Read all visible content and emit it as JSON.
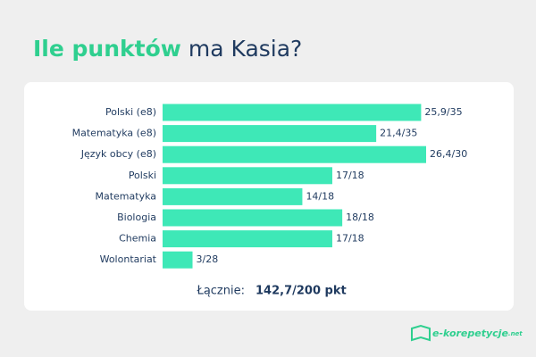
{
  "chart_data": {
    "type": "bar",
    "orientation": "horizontal",
    "title": [
      "Ile punktów",
      "ma Kasia?"
    ],
    "categories": [
      "Polski (e8)",
      "Matematyka (e8)",
      "Język obcy (e8)",
      "Polski",
      "Matematyka",
      "Biologia",
      "Chemia",
      "Wolontariat"
    ],
    "values": [
      25.9,
      21.4,
      26.4,
      17,
      14,
      18,
      17,
      3
    ],
    "value_labels": [
      "25,9/35",
      "21,4/35",
      "26,4/30",
      "17/18",
      "14/18",
      "18/18",
      "17/18",
      "3/28"
    ],
    "color": "#3ee8b7",
    "total_label": "Łącznie:",
    "total": "142,7/200 pkt",
    "logo": "e-korepetycje",
    "logo_suffix": ".net"
  }
}
